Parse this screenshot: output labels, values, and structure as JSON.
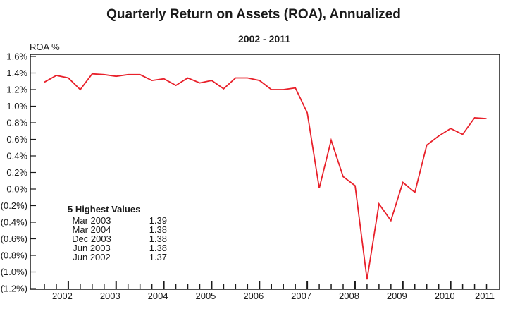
{
  "chart_data": {
    "type": "line",
    "title": "Quarterly Return on Assets (ROA), Annualized",
    "subtitle": "2002 - 2011",
    "ylabel": "ROA %",
    "xlabel": "",
    "ylim": [
      -1.2,
      1.6
    ],
    "yticks": [
      1.6,
      1.4,
      1.2,
      1.0,
      0.8,
      0.6,
      0.4,
      0.2,
      0.0,
      -0.2,
      -0.4,
      -0.6,
      -0.8,
      -1.0,
      -1.2
    ],
    "ytick_labels": [
      "1.6%",
      "1.4%",
      "1.2%",
      "1.0%",
      "0.8%",
      "0.6%",
      "0.4%",
      "0.2%",
      "0.0%",
      "(0.2%)",
      "(0.4%)",
      "(0.6%)",
      "(0.8%)",
      "(1.0%)",
      "(1.2%)"
    ],
    "xtick_labels": [
      "2002",
      "2003",
      "2004",
      "2005",
      "2006",
      "2007",
      "2008",
      "2009",
      "2010",
      "2011"
    ],
    "grid": false,
    "legend": "none",
    "series": [
      {
        "name": "ROA",
        "color": "#e8202a",
        "x": [
          "Mar 2002",
          "Jun 2002",
          "Sep 2002",
          "Dec 2002",
          "Mar 2003",
          "Jun 2003",
          "Sep 2003",
          "Dec 2003",
          "Mar 2004",
          "Jun 2004",
          "Sep 2004",
          "Dec 2004",
          "Mar 2005",
          "Jun 2005",
          "Sep 2005",
          "Dec 2005",
          "Mar 2006",
          "Jun 2006",
          "Sep 2006",
          "Dec 2006",
          "Mar 2007",
          "Jun 2007",
          "Sep 2007",
          "Dec 2007",
          "Mar 2008",
          "Jun 2008",
          "Sep 2008",
          "Dec 2008",
          "Mar 2009",
          "Jun 2009",
          "Sep 2009",
          "Dec 2009",
          "Mar 2010",
          "Jun 2010",
          "Sep 2010",
          "Dec 2010",
          "Mar 2011",
          "Jun 2011"
        ],
        "values": [
          1.29,
          1.37,
          1.34,
          1.2,
          1.39,
          1.38,
          1.36,
          1.38,
          1.38,
          1.31,
          1.33,
          1.25,
          1.34,
          1.28,
          1.31,
          1.21,
          1.34,
          1.34,
          1.31,
          1.2,
          1.2,
          1.22,
          0.92,
          0.01,
          0.59,
          0.15,
          0.04,
          -1.09,
          -0.18,
          -0.38,
          0.08,
          -0.04,
          0.53,
          0.64,
          0.73,
          0.66,
          0.86,
          0.85
        ]
      }
    ],
    "annotation": {
      "title": "5 Highest Values",
      "rows": [
        {
          "period": "Mar 2003",
          "value": "1.39"
        },
        {
          "period": "Mar 2004",
          "value": "1.38"
        },
        {
          "period": "Dec 2003",
          "value": "1.38"
        },
        {
          "period": "Jun 2003",
          "value": "1.38"
        },
        {
          "period": "Jun 2002",
          "value": "1.37"
        }
      ]
    }
  }
}
